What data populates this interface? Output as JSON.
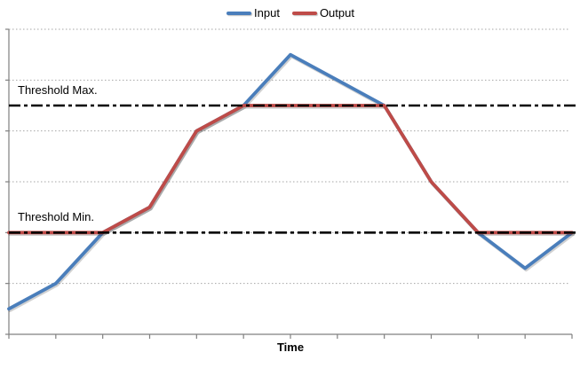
{
  "colors": {
    "background": "#FFFFFF",
    "axis": "#808080",
    "gridline": "#A6A6A6",
    "threshold_line": "#000000",
    "text": "#000000",
    "input_line": "#4A7EBB",
    "output_line": "#BE4B48"
  },
  "chart_data": {
    "type": "line",
    "title": "",
    "xlabel": "Time",
    "ylabel": "",
    "x": [
      0,
      1,
      2,
      3,
      4,
      5,
      6,
      7,
      8,
      9,
      10,
      11,
      12
    ],
    "x_tick_labels": [],
    "y_tick_labels": [],
    "ylim": [
      0,
      6
    ],
    "y_gridline_step": 1,
    "grid": "horizontal-dotted",
    "legend_position": "top-center",
    "series": [
      {
        "name": "Input",
        "color": "#4A7EBB",
        "values": [
          0.5,
          1.0,
          2.0,
          2.5,
          4.0,
          4.5,
          5.5,
          5.0,
          4.5,
          3.0,
          2.0,
          1.3,
          2.0
        ]
      },
      {
        "name": "Output",
        "color": "#BE4B48",
        "note": "Output equals Input clamped between Threshold Min and Threshold Max",
        "values": [
          2.0,
          2.0,
          2.0,
          2.5,
          4.0,
          4.5,
          4.5,
          4.5,
          4.5,
          3.0,
          2.0,
          2.0,
          2.0
        ]
      }
    ],
    "thresholds": [
      {
        "label": "Threshold Max.",
        "value": 4.5,
        "style": "black-dash-dot"
      },
      {
        "label": "Threshold Min.",
        "value": 2.0,
        "style": "black-dash-dot"
      }
    ]
  }
}
